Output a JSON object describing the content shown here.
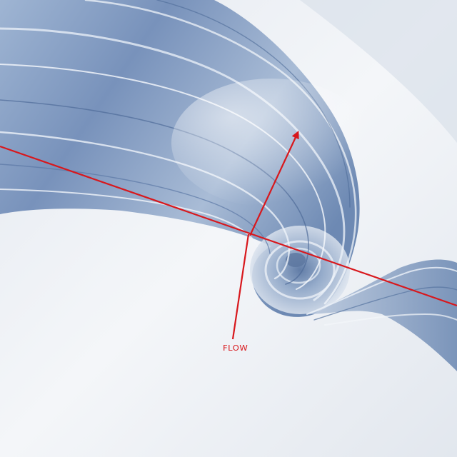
{
  "annotation": {
    "label": "FLOW",
    "color": "#d8171c"
  },
  "palette": {
    "background": "#f2f4f7",
    "wave_dark": "#5c7aa8",
    "wave_mid": "#90a9cb",
    "wave_light": "#d7e1ee"
  }
}
